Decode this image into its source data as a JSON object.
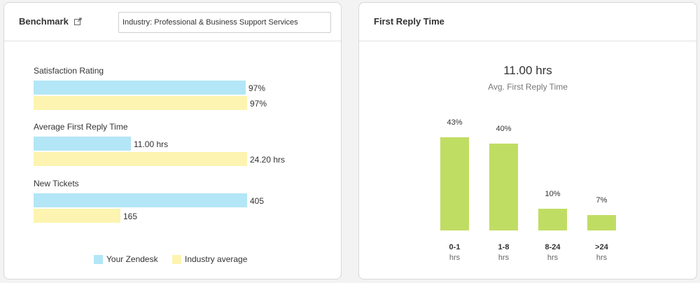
{
  "benchmark": {
    "title": "Benchmark",
    "industry_value": "Industry: Professional & Business Support Services",
    "metrics": [
      {
        "label": "Satisfaction Rating",
        "your_value": "97%",
        "industry_value": "97%",
        "your_fraction": 0.992,
        "industry_fraction": 1.0
      },
      {
        "label": "Average First Reply Time",
        "your_value": "11.00 hrs",
        "industry_value": "24.20 hrs",
        "your_fraction": 0.455,
        "industry_fraction": 1.0
      },
      {
        "label": "New Tickets",
        "your_value": "405",
        "industry_value": "165",
        "your_fraction": 1.0,
        "industry_fraction": 0.407
      }
    ],
    "legend": {
      "yours": "Your Zendesk",
      "industry": "Industry average"
    },
    "colors": {
      "yours": "#b3e6f6",
      "industry": "#fcf4b0"
    }
  },
  "first_reply": {
    "title": "First Reply Time",
    "value": "11.00 hrs",
    "value_label": "Avg. First Reply Time",
    "bar_color": "#c0dd63",
    "chart_data": {
      "type": "bar",
      "categories": [
        "0-1",
        "1-8",
        "8-24",
        ">24"
      ],
      "unit": "hrs",
      "values": [
        43,
        40,
        10,
        7
      ],
      "labels": [
        "43%",
        "40%",
        "10%",
        "7%"
      ],
      "ylim": [
        0,
        43
      ]
    }
  }
}
